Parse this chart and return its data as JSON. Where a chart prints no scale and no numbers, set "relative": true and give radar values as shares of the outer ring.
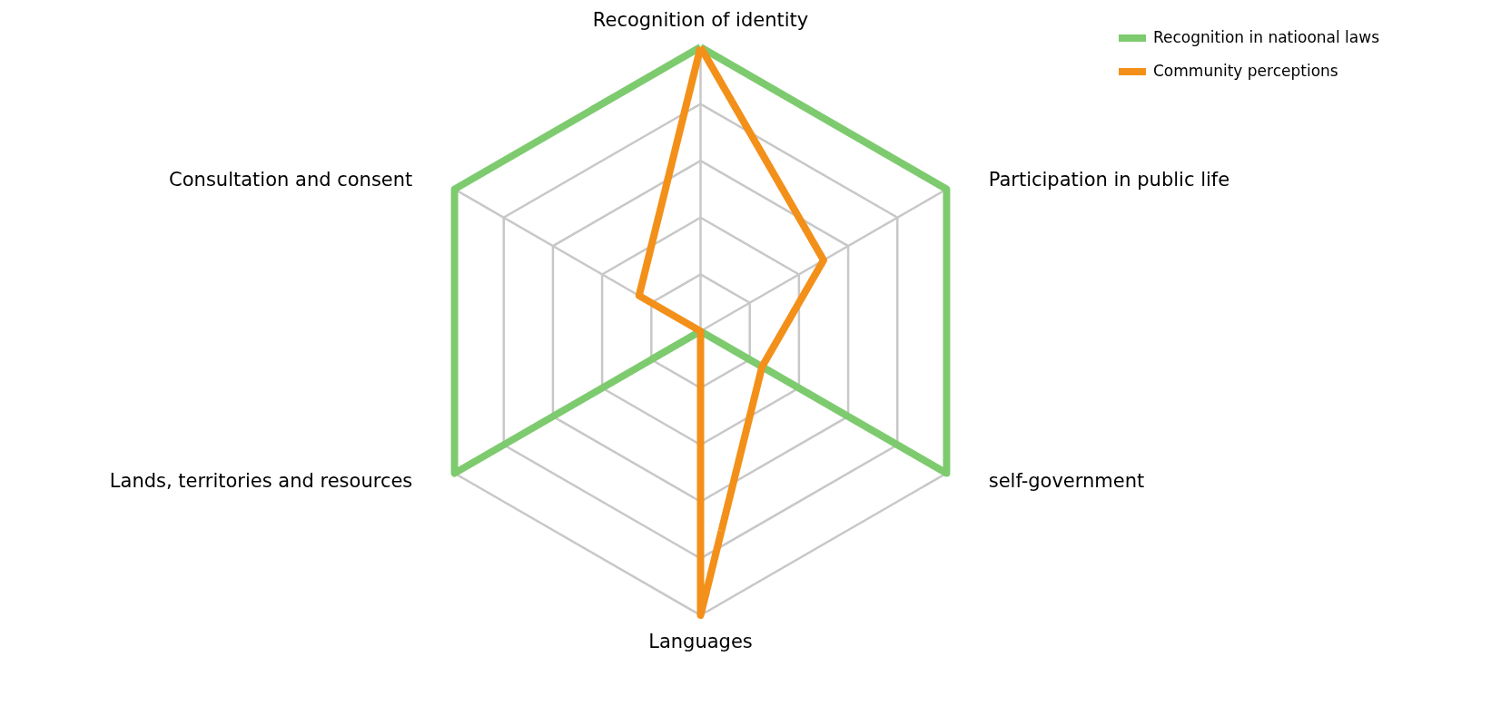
{
  "chart_data": {
    "type": "radar",
    "relative": true,
    "grid": true,
    "legend": "top right",
    "line_style": "solid",
    "categories": [
      "Recognition of identity",
      "Participation in public life",
      "self-government",
      "Languages",
      "Lands, territories and resources",
      "Consultation and consent"
    ],
    "series": [
      {
        "name": "Recognition in natioonal laws",
        "color": "#7dcb6e",
        "values": [
          1,
          1,
          1,
          0,
          1,
          1
        ]
      },
      {
        "name": "Community perceptions",
        "color": "#f39019",
        "values": [
          1,
          0.5,
          0.25,
          1,
          0,
          0.25
        ]
      }
    ]
  }
}
